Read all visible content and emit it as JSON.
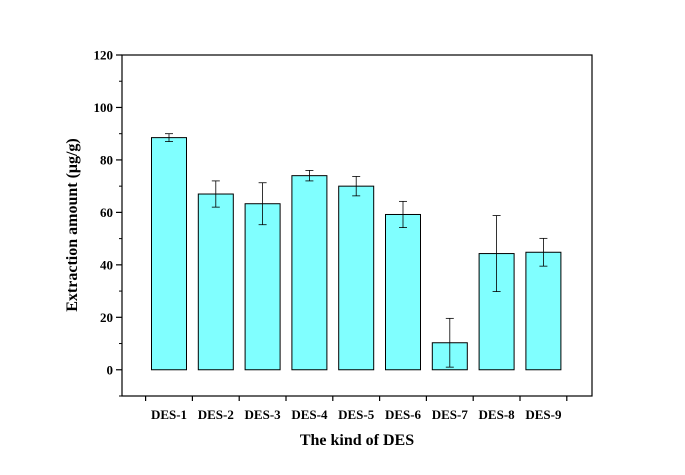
{
  "chart_data": {
    "type": "bar",
    "title": "",
    "xlabel": "The kind of DES",
    "ylabel": "Extraction amount (μg/g)",
    "categories": [
      "DES-1",
      "DES-2",
      "DES-3",
      "DES-4",
      "DES-5",
      "DES-6",
      "DES-7",
      "DES-8",
      "DES-9"
    ],
    "values": [
      88.5,
      67.0,
      63.3,
      74.0,
      70.0,
      59.2,
      10.3,
      44.3,
      44.8
    ],
    "errors": [
      1.5,
      5.0,
      8.0,
      2.0,
      3.7,
      5.0,
      9.3,
      14.5,
      5.3
    ],
    "ylim": [
      -10,
      120
    ],
    "yticks": [
      0,
      20,
      40,
      60,
      80,
      100,
      120
    ],
    "grid": false,
    "bar_color": "#80FFFF",
    "edge_color": "#000000"
  }
}
